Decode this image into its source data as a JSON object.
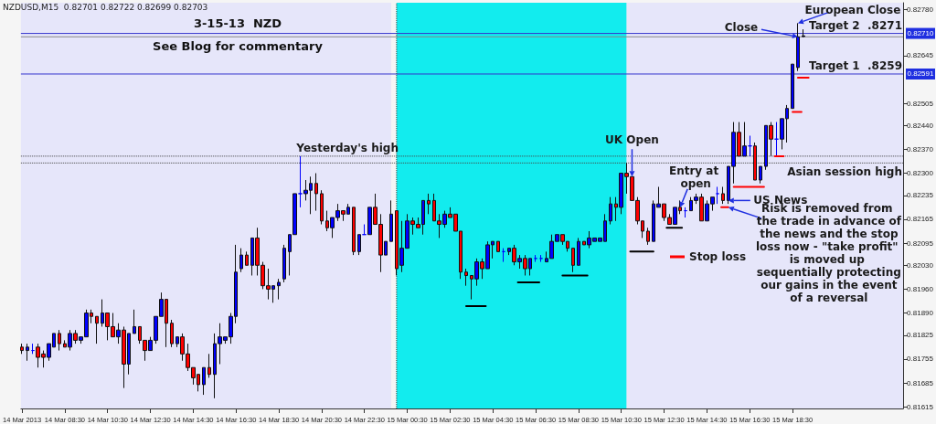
{
  "chart_data": {
    "type": "candlestick",
    "title": "3-15-13  NZD",
    "subtitle": "See Blog for commentary",
    "annotations": [
      "NZDUSD,M15  0.82701 0.82722 0.82699 0.82703",
      {
        "text": "UK Open",
        "x": "2013-03-15T11:00",
        "y": 0.8229
      },
      {
        "text": "Entry at open",
        "x": "2013-03-15T13:15",
        "y": 0.822
      },
      {
        "text": "US News",
        "x": "2013-03-15T15:30",
        "y": 0.8222
      },
      {
        "text": "Close",
        "x": "2013-03-15T18:45",
        "y": 0.827
      },
      {
        "text": "European Close",
        "x": "2013-03-15T18:45",
        "y": 0.8274
      },
      {
        "text": "Risk is removed from the trade in advance of the news and the stop loss now - \"take profit\" is moved up sequentially protecting our gains in the event of a reversal",
        "x": "2013-03-15T15:30",
        "y": 0.822
      },
      {
        "text": "0.82710",
        "y": 0.8271
      },
      {
        "text": "0.82591",
        "y": 0.82591
      }
    ],
    "x": [
      "2013-03-14T06:30",
      "2013-03-14T06:45",
      "2013-03-14T07:00",
      "2013-03-14T07:15",
      "2013-03-14T07:30",
      "2013-03-14T07:45",
      "2013-03-14T08:00",
      "2013-03-14T08:15",
      "2013-03-14T08:30",
      "2013-03-14T08:45",
      "2013-03-14T09:00",
      "2013-03-14T09:15",
      "2013-03-14T09:30",
      "2013-03-14T09:45",
      "2013-03-14T10:00",
      "2013-03-14T10:15",
      "2013-03-14T10:30",
      "2013-03-14T10:45",
      "2013-03-14T11:00",
      "2013-03-14T11:15",
      "2013-03-14T11:30",
      "2013-03-14T11:45",
      "2013-03-14T12:00",
      "2013-03-14T12:15",
      "2013-03-14T12:30",
      "2013-03-14T12:45",
      "2013-03-14T13:00",
      "2013-03-14T13:15",
      "2013-03-14T13:30",
      "2013-03-14T13:45",
      "2013-03-14T14:00",
      "2013-03-14T14:15",
      "2013-03-14T14:30",
      "2013-03-14T14:45",
      "2013-03-14T15:00",
      "2013-03-14T15:15",
      "2013-03-14T15:30",
      "2013-03-14T15:45",
      "2013-03-14T16:00",
      "2013-03-14T16:15",
      "2013-03-14T16:30",
      "2013-03-14T16:45",
      "2013-03-14T17:00",
      "2013-03-14T17:15",
      "2013-03-14T17:30",
      "2013-03-14T17:45",
      "2013-03-14T18:00",
      "2013-03-14T18:15",
      "2013-03-14T18:30",
      "2013-03-14T18:45",
      "2013-03-14T19:00",
      "2013-03-14T19:15",
      "2013-03-14T19:30",
      "2013-03-14T19:45",
      "2013-03-14T20:00",
      "2013-03-14T20:15",
      "2013-03-14T20:30",
      "2013-03-14T20:45",
      "2013-03-14T21:00",
      "2013-03-14T21:15",
      "2013-03-14T21:30",
      "2013-03-14T21:45",
      "2013-03-14T22:00",
      "2013-03-14T22:15",
      "2013-03-14T22:30",
      "2013-03-14T22:45",
      "2013-03-14T23:00",
      "2013-03-14T23:15",
      "2013-03-14T23:30",
      "2013-03-14T23:45",
      "2013-03-15T00:00",
      "2013-03-15T00:15",
      "2013-03-15T00:30",
      "2013-03-15T00:45",
      "2013-03-15T01:00",
      "2013-03-15T01:15",
      "2013-03-15T01:30",
      "2013-03-15T01:45",
      "2013-03-15T02:00",
      "2013-03-15T02:15",
      "2013-03-15T02:30",
      "2013-03-15T02:45",
      "2013-03-15T03:00",
      "2013-03-15T03:15",
      "2013-03-15T03:30",
      "2013-03-15T03:45",
      "2013-03-15T04:00",
      "2013-03-15T04:15",
      "2013-03-15T04:30",
      "2013-03-15T04:45",
      "2013-03-15T05:00",
      "2013-03-15T05:15",
      "2013-03-15T05:30",
      "2013-03-15T05:45",
      "2013-03-15T06:00",
      "2013-03-15T06:15",
      "2013-03-15T06:30",
      "2013-03-15T06:45",
      "2013-03-15T07:00",
      "2013-03-15T07:15",
      "2013-03-15T07:30",
      "2013-03-15T07:45",
      "2013-03-15T08:00",
      "2013-03-15T08:15",
      "2013-03-15T08:30",
      "2013-03-15T08:45",
      "2013-03-15T09:00",
      "2013-03-15T09:15",
      "2013-03-15T09:30",
      "2013-03-15T09:45",
      "2013-03-15T10:00",
      "2013-03-15T10:15",
      "2013-03-15T10:30",
      "2013-03-15T10:45",
      "2013-03-15T11:00",
      "2013-03-15T11:15",
      "2013-03-15T11:30",
      "2013-03-15T11:45",
      "2013-03-15T12:00",
      "2013-03-15T12:15",
      "2013-03-15T12:30",
      "2013-03-15T12:45",
      "2013-03-15T13:00",
      "2013-03-15T13:15",
      "2013-03-15T13:30",
      "2013-03-15T13:45",
      "2013-03-15T14:00",
      "2013-03-15T14:15",
      "2013-03-15T14:30",
      "2013-03-15T14:45",
      "2013-03-15T15:00",
      "2013-03-15T15:15",
      "2013-03-15T15:30",
      "2013-03-15T15:45",
      "2013-03-15T16:00",
      "2013-03-15T16:15",
      "2013-03-15T16:30",
      "2013-03-15T16:45",
      "2013-03-15T17:00",
      "2013-03-15T17:15",
      "2013-03-15T17:30",
      "2013-03-15T17:45",
      "2013-03-15T18:00",
      "2013-03-15T18:15",
      "2013-03-15T18:30",
      "2013-03-15T18:45",
      "2013-03-15T19:00"
    ],
    "ohlc": [
      [
        0.8179,
        0.818,
        0.8177,
        0.8178
      ],
      [
        0.8178,
        0.818,
        0.8175,
        0.8179
      ],
      [
        0.8178,
        0.818,
        0.8177,
        0.8178
      ],
      [
        0.8179,
        0.818,
        0.8173,
        0.8176
      ],
      [
        0.8177,
        0.8178,
        0.8173,
        0.8176
      ],
      [
        0.8176,
        0.818,
        0.8175,
        0.818
      ],
      [
        0.8179,
        0.8183,
        0.8179,
        0.8183
      ],
      [
        0.8183,
        0.8184,
        0.8178,
        0.818
      ],
      [
        0.818,
        0.8181,
        0.8179,
        0.8179
      ],
      [
        0.8179,
        0.8184,
        0.8178,
        0.8183
      ],
      [
        0.8183,
        0.8184,
        0.818,
        0.8181
      ],
      [
        0.8181,
        0.8182,
        0.818,
        0.8182
      ],
      [
        0.8182,
        0.819,
        0.8182,
        0.8189
      ],
      [
        0.8189,
        0.819,
        0.8186,
        0.8188
      ],
      [
        0.8188,
        0.8188,
        0.818,
        0.8186
      ],
      [
        0.8186,
        0.8193,
        0.8185,
        0.8189
      ],
      [
        0.8189,
        0.8189,
        0.8181,
        0.8185
      ],
      [
        0.8185,
        0.8189,
        0.8182,
        0.8182
      ],
      [
        0.8182,
        0.8186,
        0.818,
        0.8184
      ],
      [
        0.8184,
        0.8185,
        0.8167,
        0.8174
      ],
      [
        0.8174,
        0.8183,
        0.8171,
        0.8183
      ],
      [
        0.8183,
        0.819,
        0.8183,
        0.8185
      ],
      [
        0.8185,
        0.8185,
        0.818,
        0.8181
      ],
      [
        0.8181,
        0.8181,
        0.8175,
        0.8178
      ],
      [
        0.8178,
        0.8182,
        0.8178,
        0.8181
      ],
      [
        0.8181,
        0.8188,
        0.818,
        0.8188
      ],
      [
        0.8188,
        0.8195,
        0.8188,
        0.8193
      ],
      [
        0.8193,
        0.8193,
        0.8179,
        0.8186
      ],
      [
        0.8186,
        0.8187,
        0.8179,
        0.818
      ],
      [
        0.818,
        0.8182,
        0.8179,
        0.8182
      ],
      [
        0.8182,
        0.8183,
        0.8175,
        0.8177
      ],
      [
        0.8177,
        0.818,
        0.8172,
        0.8173
      ],
      [
        0.8173,
        0.8173,
        0.8168,
        0.817
      ],
      [
        0.8171,
        0.8171,
        0.8166,
        0.8168
      ],
      [
        0.8168,
        0.8173,
        0.8165,
        0.8173
      ],
      [
        0.8173,
        0.8177,
        0.817,
        0.8171
      ],
      [
        0.8171,
        0.8183,
        0.8164,
        0.818
      ],
      [
        0.818,
        0.8186,
        0.8174,
        0.8182
      ],
      [
        0.8181,
        0.8182,
        0.818,
        0.8182
      ],
      [
        0.8182,
        0.8189,
        0.818,
        0.8188
      ],
      [
        0.8188,
        0.8209,
        0.8186,
        0.8201
      ],
      [
        0.8202,
        0.8208,
        0.8201,
        0.8206
      ],
      [
        0.8206,
        0.8207,
        0.8203,
        0.8203
      ],
      [
        0.8203,
        0.8211,
        0.82,
        0.8211
      ],
      [
        0.8211,
        0.8214,
        0.82,
        0.8203
      ],
      [
        0.8203,
        0.8204,
        0.8196,
        0.8197
      ],
      [
        0.8197,
        0.8202,
        0.8193,
        0.8196
      ],
      [
        0.8196,
        0.8197,
        0.8192,
        0.8197
      ],
      [
        0.8197,
        0.8199,
        0.8193,
        0.8198
      ],
      [
        0.8199,
        0.8209,
        0.8198,
        0.8208
      ],
      [
        0.8207,
        0.8212,
        0.82,
        0.8212
      ],
      [
        0.8212,
        0.8224,
        0.8212,
        0.8224
      ],
      [
        0.8224,
        0.8235,
        0.822,
        0.8224
      ],
      [
        0.8224,
        0.8228,
        0.8222,
        0.8225
      ],
      [
        0.8225,
        0.8229,
        0.8218,
        0.8227
      ],
      [
        0.8227,
        0.823,
        0.8219,
        0.8224
      ],
      [
        0.8224,
        0.8225,
        0.8215,
        0.8216
      ],
      [
        0.8216,
        0.8219,
        0.8213,
        0.8214
      ],
      [
        0.8214,
        0.8217,
        0.8211,
        0.8217
      ],
      [
        0.8217,
        0.8221,
        0.8216,
        0.8219
      ],
      [
        0.8219,
        0.8219,
        0.8216,
        0.8218
      ],
      [
        0.8218,
        0.8221,
        0.8218,
        0.822
      ],
      [
        0.822,
        0.822,
        0.8206,
        0.8207
      ],
      [
        0.8207,
        0.8212,
        0.8206,
        0.8212
      ],
      [
        0.8212,
        0.8215,
        0.8212,
        0.8212
      ],
      [
        0.8212,
        0.822,
        0.8212,
        0.822
      ],
      [
        0.822,
        0.8224,
        0.8215,
        0.8215
      ],
      [
        0.8215,
        0.8218,
        0.8201,
        0.8206
      ],
      [
        0.8206,
        0.821,
        0.8206,
        0.821
      ],
      [
        0.821,
        0.8222,
        0.821,
        0.8218
      ],
      [
        0.8219,
        0.8219,
        0.82,
        0.8202
      ],
      [
        0.8203,
        0.8216,
        0.8201,
        0.8208
      ],
      [
        0.8208,
        0.8218,
        0.8208,
        0.8216
      ],
      [
        0.8216,
        0.8217,
        0.8212,
        0.8215
      ],
      [
        0.8215,
        0.8217,
        0.8214,
        0.8214
      ],
      [
        0.8215,
        0.8222,
        0.8212,
        0.8222
      ],
      [
        0.8222,
        0.8224,
        0.8218,
        0.8221
      ],
      [
        0.8222,
        0.8224,
        0.8216,
        0.8216
      ],
      [
        0.8216,
        0.8218,
        0.8211,
        0.8215
      ],
      [
        0.8215,
        0.8219,
        0.8214,
        0.8218
      ],
      [
        0.8218,
        0.822,
        0.8217,
        0.8217
      ],
      [
        0.8218,
        0.8218,
        0.8213,
        0.8213
      ],
      [
        0.8213,
        0.8213,
        0.8199,
        0.8201
      ],
      [
        0.8201,
        0.8202,
        0.8197,
        0.82
      ],
      [
        0.82,
        0.82,
        0.8193,
        0.8199
      ],
      [
        0.8199,
        0.8205,
        0.8197,
        0.8204
      ],
      [
        0.8204,
        0.8205,
        0.8199,
        0.8202
      ],
      [
        0.8202,
        0.821,
        0.8202,
        0.8209
      ],
      [
        0.8209,
        0.821,
        0.8205,
        0.821
      ],
      [
        0.821,
        0.821,
        0.8207,
        0.8207
      ],
      [
        0.8207,
        0.8208,
        0.8204,
        0.8207
      ],
      [
        0.8207,
        0.8208,
        0.8206,
        0.8208
      ],
      [
        0.8208,
        0.8209,
        0.8203,
        0.8204
      ],
      [
        0.8204,
        0.8206,
        0.8202,
        0.8205
      ],
      [
        0.8205,
        0.8206,
        0.82,
        0.8202
      ],
      [
        0.8202,
        0.8205,
        0.82,
        0.8205
      ],
      [
        0.8205,
        0.8206,
        0.8204,
        0.8205
      ],
      [
        0.8205,
        0.8206,
        0.8204,
        0.8205
      ],
      [
        0.8204,
        0.8207,
        0.8204,
        0.8205
      ],
      [
        0.8205,
        0.8212,
        0.8205,
        0.821
      ],
      [
        0.821,
        0.8212,
        0.821,
        0.8212
      ],
      [
        0.8212,
        0.8212,
        0.8209,
        0.821
      ],
      [
        0.821,
        0.821,
        0.8207,
        0.8208
      ],
      [
        0.8208,
        0.8208,
        0.8201,
        0.8203
      ],
      [
        0.8203,
        0.8211,
        0.8203,
        0.821
      ],
      [
        0.821,
        0.821,
        0.8209,
        0.8209
      ],
      [
        0.8209,
        0.8213,
        0.8208,
        0.8211
      ],
      [
        0.821,
        0.8211,
        0.821,
        0.8211
      ],
      [
        0.821,
        0.8211,
        0.821,
        0.8211
      ],
      [
        0.821,
        0.8218,
        0.821,
        0.8216
      ],
      [
        0.8216,
        0.8223,
        0.8215,
        0.8221
      ],
      [
        0.8221,
        0.8223,
        0.8216,
        0.822
      ],
      [
        0.822,
        0.823,
        0.8218,
        0.823
      ],
      [
        0.823,
        0.8233,
        0.8224,
        0.8229
      ],
      [
        0.8229,
        0.8229,
        0.8222,
        0.8222
      ],
      [
        0.8222,
        0.8223,
        0.8215,
        0.8216
      ],
      [
        0.8216,
        0.8216,
        0.8211,
        0.8213
      ],
      [
        0.8213,
        0.8214,
        0.8209,
        0.821
      ],
      [
        0.821,
        0.8222,
        0.821,
        0.8221
      ],
      [
        0.822,
        0.8226,
        0.822,
        0.8221
      ],
      [
        0.8221,
        0.8221,
        0.8216,
        0.8217
      ],
      [
        0.8217,
        0.8218,
        0.8215,
        0.8215
      ],
      [
        0.8215,
        0.822,
        0.8215,
        0.822
      ],
      [
        0.822,
        0.8222,
        0.8218,
        0.8219
      ],
      [
        0.8219,
        0.822,
        0.8217,
        0.8219
      ],
      [
        0.8219,
        0.8223,
        0.8219,
        0.8222
      ],
      [
        0.8222,
        0.8224,
        0.8221,
        0.8223
      ],
      [
        0.8223,
        0.8224,
        0.8216,
        0.8216
      ],
      [
        0.8216,
        0.8222,
        0.8216,
        0.8221
      ],
      [
        0.8221,
        0.8223,
        0.8219,
        0.8223
      ],
      [
        0.8224,
        0.8226,
        0.8221,
        0.8224
      ],
      [
        0.8224,
        0.8226,
        0.8221,
        0.8222
      ],
      [
        0.8222,
        0.8232,
        0.8221,
        0.8232
      ],
      [
        0.8232,
        0.8245,
        0.8227,
        0.8242
      ],
      [
        0.8242,
        0.8245,
        0.8235,
        0.8235
      ],
      [
        0.8235,
        0.8245,
        0.8235,
        0.8238
      ],
      [
        0.8238,
        0.8241,
        0.8235,
        0.8238
      ],
      [
        0.8238,
        0.8239,
        0.8228,
        0.8228
      ],
      [
        0.8228,
        0.8232,
        0.8227,
        0.8232
      ],
      [
        0.8232,
        0.8244,
        0.8231,
        0.8244
      ],
      [
        0.8244,
        0.8245,
        0.8235,
        0.824
      ],
      [
        0.824,
        0.8245,
        0.8235,
        0.824
      ],
      [
        0.824,
        0.8246,
        0.8237,
        0.8246
      ],
      [
        0.8246,
        0.825,
        0.8239,
        0.8249
      ],
      [
        0.8249,
        0.8262,
        0.8249,
        0.8262
      ],
      [
        0.8261,
        0.8274,
        0.826,
        0.827
      ],
      [
        0.82701,
        0.82722,
        0.82699,
        0.82703
      ]
    ],
    "colors": [
      "#ff0000",
      "#0000ff",
      "#0000ff",
      "#ff0000",
      "#ff0000",
      "#0000ff",
      "#0000ff",
      "#ff0000",
      "#ff0000",
      "#0000ff",
      "#ff0000",
      "#0000ff",
      "#0000ff",
      "#ff0000",
      "#ff0000",
      "#0000ff",
      "#ff0000",
      "#ff0000",
      "#0000ff",
      "#ff0000",
      "#0000ff",
      "#0000ff",
      "#ff0000",
      "#ff0000",
      "#0000ff",
      "#0000ff",
      "#0000ff",
      "#ff0000",
      "#ff0000",
      "#0000ff",
      "#ff0000",
      "#ff0000",
      "#ff0000",
      "#ff0000",
      "#0000ff",
      "#ff0000",
      "#0000ff",
      "#0000ff",
      "#0000ff",
      "#0000ff",
      "#0000ff",
      "#0000ff",
      "#ff0000",
      "#0000ff",
      "#ff0000",
      "#ff0000",
      "#ff0000",
      "#0000ff",
      "#0000ff",
      "#0000ff",
      "#0000ff",
      "#0000ff",
      "#0000ff",
      "#0000ff",
      "#0000ff",
      "#ff0000",
      "#ff0000",
      "#ff0000",
      "#0000ff",
      "#0000ff",
      "#ff0000",
      "#0000ff",
      "#ff0000",
      "#0000ff",
      "#0000ff",
      "#0000ff",
      "#ff0000",
      "#ff0000",
      "#0000ff",
      "#0000ff",
      "#ff0000",
      "#0000ff",
      "#0000ff",
      "#ff0000",
      "#ff0000",
      "#0000ff",
      "#ff0000",
      "#ff0000",
      "#ff0000",
      "#0000ff",
      "#ff0000",
      "#ff0000",
      "#ff0000",
      "#ff0000",
      "#ff0000",
      "#0000ff",
      "#ff0000",
      "#0000ff",
      "#0000ff",
      "#ff0000",
      "#0000ff",
      "#0000ff",
      "#ff0000",
      "#0000ff",
      "#ff0000",
      "#0000ff",
      "#0000ff",
      "#0000ff",
      "#0000ff",
      "#0000ff",
      "#0000ff",
      "#ff0000",
      "#ff0000",
      "#ff0000",
      "#0000ff",
      "#ff0000",
      "#0000ff",
      "#0000ff",
      "#0000ff",
      "#0000ff",
      "#0000ff",
      "#ff0000",
      "#0000ff",
      "#ff0000",
      "#ff0000",
      "#ff0000",
      "#ff0000",
      "#ff0000",
      "#0000ff",
      "#0000ff",
      "#ff0000",
      "#ff0000",
      "#0000ff",
      "#ff0000",
      "#0000ff",
      "#0000ff",
      "#0000ff",
      "#ff0000",
      "#0000ff",
      "#0000ff",
      "#0000ff",
      "#ff0000",
      "#0000ff",
      "#0000ff",
      "#ff0000",
      "#0000ff",
      "#0000ff",
      "#ff0000",
      "#0000ff",
      "#0000ff",
      "#ff0000",
      "#0000ff",
      "#0000ff",
      "#0000ff",
      "#0000ff",
      "#0000ff",
      "#0000ff"
    ],
    "series": [
      {
        "type": "line",
        "name": "Stop loss",
        "color": "#ff0000",
        "x": [
          "2013-03-15T15:10",
          "2013-03-15T15:30"
        ],
        "values": [
          0.822,
          0.822
        ]
      },
      {
        "type": "line",
        "color": "#ff0000",
        "x": [
          "2013-03-15T15:45",
          "2013-03-15T17:10"
        ],
        "values": [
          0.8226,
          0.8226
        ]
      },
      {
        "type": "line",
        "color": "#ff0000",
        "x": [
          "2013-03-15T17:40",
          "2013-03-15T18:05"
        ],
        "values": [
          0.8235,
          0.8235
        ]
      },
      {
        "type": "line",
        "color": "#ff0000",
        "x": [
          "2013-03-15T18:30",
          "2013-03-15T18:55"
        ],
        "values": [
          0.8248,
          0.8248
        ]
      },
      {
        "type": "line",
        "color": "#ff0000",
        "x": [
          "2013-03-15T18:45",
          "2013-03-15T19:15"
        ],
        "values": [
          0.8258,
          0.8258
        ]
      },
      {
        "type": "line",
        "color": "#000000",
        "x": [
          "2013-03-15T03:15",
          "2013-03-15T04:10"
        ],
        "values": [
          0.8191,
          0.8191
        ]
      },
      {
        "type": "line",
        "color": "#000000",
        "x": [
          "2013-03-15T05:40",
          "2013-03-15T06:40"
        ],
        "values": [
          0.8198,
          0.8198
        ]
      },
      {
        "type": "line",
        "color": "#000000",
        "x": [
          "2013-03-15T07:45",
          "2013-03-15T08:55"
        ],
        "values": [
          0.82,
          0.82
        ]
      },
      {
        "type": "line",
        "color": "#000000",
        "x": [
          "2013-03-15T10:55",
          "2013-03-15T12:00"
        ],
        "values": [
          0.8207,
          0.8207
        ]
      },
      {
        "type": "line",
        "color": "#000000",
        "x": [
          "2013-03-15T12:37",
          "2013-03-15T13:20"
        ],
        "values": [
          0.8214,
          0.8214
        ]
      }
    ],
    "ref_lines": [
      {
        "axis": "y",
        "value": 0.8271,
        "label": "Target 2  .8271",
        "color": "#3333cc"
      },
      {
        "axis": "y",
        "value": 0.827,
        "color": "#888888"
      },
      {
        "axis": "y",
        "value": 0.82591,
        "label": "Target 1  .8259",
        "color": "#3333cc"
      },
      {
        "axis": "y",
        "value": 0.8235,
        "label": "Yesterday's high",
        "color": "#444444",
        "line_style": "dotted"
      },
      {
        "axis": "y",
        "value": 0.8233,
        "label": "Asian session high",
        "color": "#444444",
        "line_style": "dotted"
      },
      {
        "axis": "x",
        "value": "2013-03-15T00:00",
        "color": "#444444",
        "line_style": "dotted"
      }
    ],
    "bands": [
      {
        "axis": "x",
        "from": "2013-03-14T06:27",
        "to": "2013-03-14T23:45",
        "color": "#e6e6fa"
      },
      {
        "axis": "x",
        "from": "2013-03-15T00:00",
        "to": "2013-03-15T10:45",
        "color": "#12ecee"
      },
      {
        "axis": "x",
        "from": "2013-03-15T10:45",
        "to": "2013-03-15T23:40",
        "color": "#e6e6fa"
      }
    ],
    "legend": "right",
    "xlim": [
      "2013-03-14T06:27",
      "2013-03-15T23:40"
    ],
    "xticks": [
      {
        "value": "2013-03-14T06:30",
        "label": "14 Mar 2013"
      },
      {
        "value": "2013-03-14T08:30",
        "label": "14 Mar 08:30"
      },
      {
        "value": "2013-03-14T10:30",
        "label": "14 Mar 10:30"
      },
      {
        "value": "2013-03-14T12:30",
        "label": "14 Mar 12:30"
      },
      {
        "value": "2013-03-14T14:30",
        "label": "14 Mar 14:30"
      },
      {
        "value": "2013-03-14T16:30",
        "label": "14 Mar 16:30"
      },
      {
        "value": "2013-03-14T18:30",
        "label": "14 Mar 18:30"
      },
      {
        "value": "2013-03-14T20:30",
        "label": "14 Mar 20:30"
      },
      {
        "value": "2013-03-14T22:30",
        "label": "14 Mar 22:30"
      },
      {
        "value": "2013-03-15T00:30",
        "label": "15 Mar 00:30"
      },
      {
        "value": "2013-03-15T02:30",
        "label": "15 Mar 02:30"
      },
      {
        "value": "2013-03-15T04:30",
        "label": "15 Mar 04:30"
      },
      {
        "value": "2013-03-15T06:30",
        "label": "15 Mar 06:30"
      },
      {
        "value": "2013-03-15T08:30",
        "label": "15 Mar 08:30"
      },
      {
        "value": "2013-03-15T10:30",
        "label": "15 Mar 10:30"
      },
      {
        "value": "2013-03-15T12:30",
        "label": "15 Mar 12:30"
      },
      {
        "value": "2013-03-15T14:30",
        "label": "15 Mar 14:30"
      },
      {
        "value": "2013-03-15T16:30",
        "label": "15 Mar 16:30"
      },
      {
        "value": "2013-03-15T18:30",
        "label": "15 Mar 18:30"
      }
    ],
    "ylim": [
      0.8161,
      0.828
    ],
    "yticks": [
      {
        "value": 0.8278,
        "label": "0.82780"
      },
      {
        "value": 0.82645,
        "label": "0.82645"
      },
      {
        "value": 0.82505,
        "label": "0.82505"
      },
      {
        "value": 0.8244,
        "label": "0.82440"
      },
      {
        "value": 0.8237,
        "label": "0.82370"
      },
      {
        "value": 0.823,
        "label": "0.82300"
      },
      {
        "value": 0.82235,
        "label": "0.82235"
      },
      {
        "value": 0.82165,
        "label": "0.82165"
      },
      {
        "value": 0.82095,
        "label": "0.82095"
      },
      {
        "value": 0.8203,
        "label": "0.82030"
      },
      {
        "value": 0.8196,
        "label": "0.81960"
      },
      {
        "value": 0.8189,
        "label": "0.81890"
      },
      {
        "value": 0.81825,
        "label": "0.81825"
      },
      {
        "value": 0.81755,
        "label": "0.81755"
      },
      {
        "value": 0.81685,
        "label": "0.81685"
      },
      {
        "value": 0.81615,
        "label": "0.81615"
      }
    ]
  }
}
